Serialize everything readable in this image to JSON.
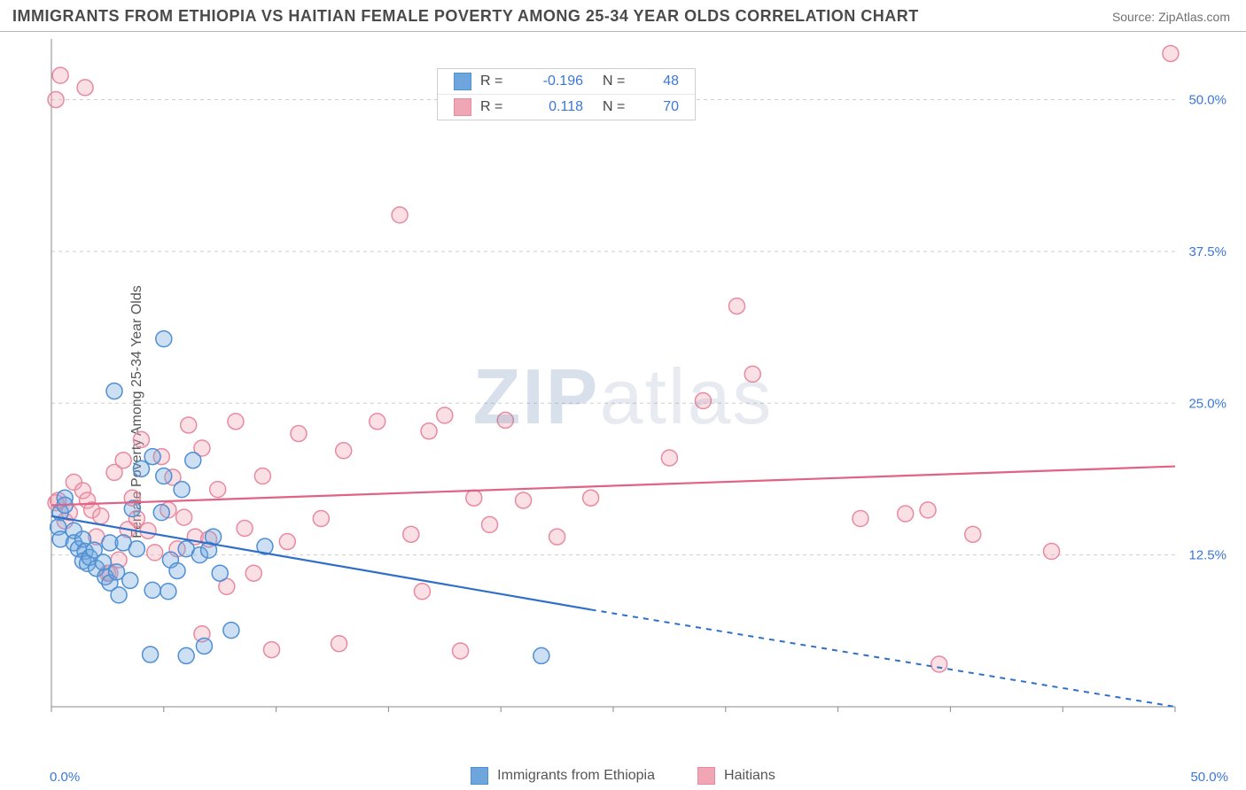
{
  "title": "IMMIGRANTS FROM ETHIOPIA VS HAITIAN FEMALE POVERTY AMONG 25-34 YEAR OLDS CORRELATION CHART",
  "source": "Source: ZipAtlas.com",
  "ylabel": "Female Poverty Among 25-34 Year Olds",
  "watermark_a": "ZIP",
  "watermark_b": "atlas",
  "chart": {
    "type": "scatter",
    "background_color": "#ffffff",
    "grid_color": "#cfcfcf",
    "axis_color": "#888888",
    "tick_label_color": "#3b77d6",
    "xlim": [
      0,
      50
    ],
    "ylim": [
      0,
      55
    ],
    "xticks": [
      0,
      50
    ],
    "xtick_labels": [
      "0.0%",
      "50.0%"
    ],
    "yticks": [
      12.5,
      25.0,
      37.5,
      50.0
    ],
    "ytick_labels": [
      "12.5%",
      "25.0%",
      "37.5%",
      "50.0%"
    ],
    "marker_radius": 9,
    "marker_fill_opacity": 0.35,
    "series": [
      {
        "name": "Immigrants from Ethiopia",
        "color": "#6fa5dd",
        "stroke": "#4f8fd4",
        "trend_color": "#2f6fc9",
        "r": -0.196,
        "n": 48,
        "trend_start": [
          0,
          15.7
        ],
        "trend_solid_end": [
          24,
          8.0
        ],
        "trend_dash_end": [
          50,
          -0.5
        ],
        "points": [
          [
            0.4,
            16.0
          ],
          [
            0.6,
            17.2
          ],
          [
            0.6,
            16.6
          ],
          [
            0.3,
            14.8
          ],
          [
            0.4,
            13.8
          ],
          [
            1.0,
            14.5
          ],
          [
            1.0,
            13.5
          ],
          [
            1.2,
            13.0
          ],
          [
            1.4,
            13.8
          ],
          [
            1.5,
            12.8
          ],
          [
            1.4,
            12.0
          ],
          [
            1.6,
            11.8
          ],
          [
            1.7,
            12.3
          ],
          [
            1.9,
            12.9
          ],
          [
            2.0,
            11.4
          ],
          [
            2.3,
            11.9
          ],
          [
            2.4,
            10.7
          ],
          [
            2.6,
            13.5
          ],
          [
            2.6,
            10.2
          ],
          [
            2.9,
            11.1
          ],
          [
            3.0,
            9.2
          ],
          [
            3.2,
            13.5
          ],
          [
            3.5,
            10.4
          ],
          [
            3.6,
            16.3
          ],
          [
            3.8,
            13.0
          ],
          [
            4.0,
            19.6
          ],
          [
            4.5,
            20.6
          ],
          [
            4.9,
            16.0
          ],
          [
            5.0,
            19.0
          ],
          [
            5.2,
            9.5
          ],
          [
            5.3,
            12.1
          ],
          [
            5.6,
            11.2
          ],
          [
            5.8,
            17.9
          ],
          [
            6.0,
            13.0
          ],
          [
            6.3,
            20.3
          ],
          [
            6.6,
            12.5
          ],
          [
            7.0,
            12.9
          ],
          [
            7.2,
            14.0
          ],
          [
            7.5,
            11.0
          ],
          [
            5.0,
            30.3
          ],
          [
            2.8,
            26.0
          ],
          [
            8.0,
            6.3
          ],
          [
            6.8,
            5.0
          ],
          [
            4.4,
            4.3
          ],
          [
            6.0,
            4.2
          ],
          [
            4.5,
            9.6
          ],
          [
            21.8,
            4.2
          ],
          [
            9.5,
            13.2
          ]
        ]
      },
      {
        "name": "Haitians",
        "color": "#f0a6b5",
        "stroke": "#e88aa0",
        "trend_color": "#e26185",
        "r": 0.118,
        "n": 70,
        "trend_start": [
          0,
          16.6
        ],
        "trend_solid_end": [
          50,
          19.8
        ],
        "points": [
          [
            0.2,
            16.8
          ],
          [
            0.3,
            17.0
          ],
          [
            0.6,
            15.3
          ],
          [
            0.8,
            16.0
          ],
          [
            1.0,
            18.5
          ],
          [
            1.4,
            17.8
          ],
          [
            1.6,
            17.0
          ],
          [
            1.8,
            16.2
          ],
          [
            2.0,
            14.0
          ],
          [
            2.2,
            15.7
          ],
          [
            2.5,
            11.0
          ],
          [
            2.8,
            19.3
          ],
          [
            3.0,
            12.1
          ],
          [
            3.2,
            20.3
          ],
          [
            3.4,
            14.6
          ],
          [
            3.6,
            17.2
          ],
          [
            3.8,
            15.5
          ],
          [
            4.0,
            22.0
          ],
          [
            4.3,
            14.5
          ],
          [
            4.6,
            12.7
          ],
          [
            4.9,
            20.6
          ],
          [
            5.2,
            16.2
          ],
          [
            5.4,
            18.9
          ],
          [
            5.6,
            13.0
          ],
          [
            5.9,
            15.6
          ],
          [
            6.1,
            23.2
          ],
          [
            6.4,
            14.0
          ],
          [
            6.7,
            21.3
          ],
          [
            7.0,
            13.8
          ],
          [
            7.4,
            17.9
          ],
          [
            7.8,
            9.9
          ],
          [
            8.2,
            23.5
          ],
          [
            8.6,
            14.7
          ],
          [
            9.0,
            11.0
          ],
          [
            9.4,
            19.0
          ],
          [
            9.8,
            4.7
          ],
          [
            10.5,
            13.6
          ],
          [
            11.0,
            22.5
          ],
          [
            2.6,
            11.0
          ],
          [
            12.0,
            15.5
          ],
          [
            13.0,
            21.1
          ],
          [
            14.5,
            23.5
          ],
          [
            15.5,
            40.5
          ],
          [
            16.0,
            14.2
          ],
          [
            16.8,
            22.7
          ],
          [
            17.5,
            24.0
          ],
          [
            18.2,
            4.6
          ],
          [
            18.8,
            17.2
          ],
          [
            19.5,
            15.0
          ],
          [
            20.2,
            23.6
          ],
          [
            21.0,
            17.0
          ],
          [
            22.5,
            14.0
          ],
          [
            24.0,
            17.2
          ],
          [
            16.5,
            9.5
          ],
          [
            27.5,
            20.5
          ],
          [
            29.0,
            25.2
          ],
          [
            30.5,
            33.0
          ],
          [
            31.2,
            27.4
          ],
          [
            36.0,
            15.5
          ],
          [
            38.0,
            15.9
          ],
          [
            39.0,
            16.2
          ],
          [
            41.0,
            14.2
          ],
          [
            44.5,
            12.8
          ],
          [
            39.5,
            3.5
          ],
          [
            0.2,
            50.0
          ],
          [
            0.4,
            52.0
          ],
          [
            1.5,
            51.0
          ],
          [
            49.8,
            53.8
          ],
          [
            6.7,
            6.0
          ],
          [
            12.8,
            5.2
          ]
        ]
      }
    ]
  },
  "legend_labels": {
    "r": "R =",
    "n": "N ="
  },
  "bottom_legend": {
    "a": "Immigrants from Ethiopia",
    "b": "Haitians"
  }
}
